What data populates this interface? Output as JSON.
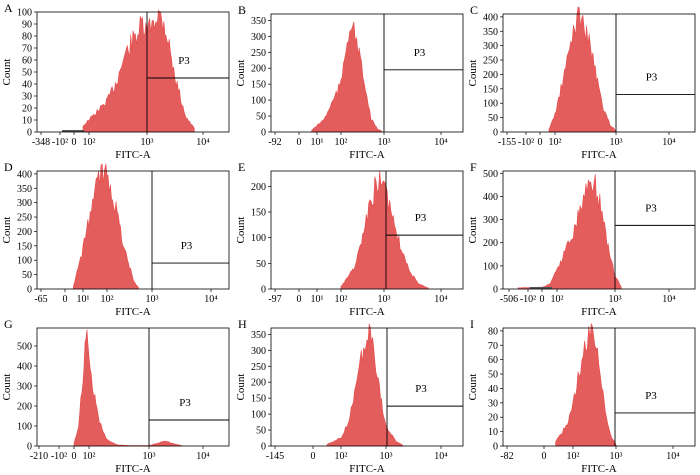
{
  "figure": {
    "xlabel": "FITC-A",
    "ylabel": "Count",
    "gate_label": "P3",
    "panels": [
      {
        "letter": "A",
        "xticks": [
          "-348",
          "-10²",
          "0",
          "10²",
          "10³",
          "10⁴"
        ],
        "ytick_values": [
          0,
          10,
          20,
          30,
          40,
          50,
          60,
          70,
          80,
          90,
          100
        ],
        "ytick_labels": [
          "0",
          "10",
          "20",
          "30",
          "40",
          "50",
          "60",
          "70",
          "80",
          "90",
          "100"
        ],
        "ymax": 100,
        "gate_level": 45
      },
      {
        "letter": "B",
        "xticks": [
          "-92",
          "0",
          "10¹",
          "10²",
          "10³",
          "10⁴"
        ],
        "ytick_values": [
          0,
          50,
          100,
          150,
          200,
          250,
          300,
          350
        ],
        "ytick_labels": [
          "0",
          "50",
          "100",
          "150",
          "200",
          "250",
          "300",
          "350"
        ],
        "ymax": 370,
        "gate_level": 195
      },
      {
        "letter": "C",
        "xticks": [
          "-155",
          "-10²",
          "0",
          "10²",
          "10³",
          "10⁴"
        ],
        "ytick_values": [
          0,
          50,
          100,
          150,
          200,
          250,
          300,
          350,
          400
        ],
        "ytick_labels": [
          "0",
          "50",
          "100",
          "150",
          "200",
          "250",
          "300",
          "350",
          "400"
        ],
        "ymax": 410,
        "gate_level": 130
      },
      {
        "letter": "D",
        "xticks": [
          "-65",
          "0",
          "10¹",
          "10²",
          "10³",
          "10⁴"
        ],
        "ytick_values": [
          0,
          50,
          100,
          150,
          200,
          250,
          300,
          350,
          400
        ],
        "ytick_labels": [
          "0",
          "50",
          "100",
          "150",
          "200",
          "250",
          "300",
          "350",
          "400"
        ],
        "ymax": 410,
        "gate_level": 90
      },
      {
        "letter": "E",
        "xticks": [
          "-97",
          "0",
          "10¹",
          "10²",
          "10³",
          "10⁴"
        ],
        "ytick_values": [
          0,
          50,
          100,
          150,
          200
        ],
        "ytick_labels": [
          "0",
          "50",
          "100",
          "150",
          "200"
        ],
        "ymax": 230,
        "gate_level": 105
      },
      {
        "letter": "F",
        "xticks": [
          "-506",
          "-10²",
          "0",
          "10²",
          "10³",
          "10⁴"
        ],
        "ytick_values": [
          0,
          100,
          200,
          300,
          400,
          500
        ],
        "ytick_labels": [
          "0",
          "100",
          "200",
          "300",
          "400",
          "500"
        ],
        "ymax": 510,
        "gate_level": 275
      },
      {
        "letter": "G",
        "xticks": [
          "-210",
          "-10²",
          "0",
          "10²",
          "10³",
          "10⁴"
        ],
        "ytick_values": [
          0,
          100,
          200,
          300,
          400,
          500
        ],
        "ytick_labels": [
          "0",
          "100",
          "200",
          "300",
          "400",
          "500"
        ],
        "ymax": 590,
        "gate_level": 130
      },
      {
        "letter": "H",
        "xticks": [
          "-145",
          "0",
          "10²",
          "10³",
          "10⁴"
        ],
        "ytick_values": [
          0,
          50,
          100,
          150,
          200,
          250,
          300,
          350
        ],
        "ytick_labels": [
          "0",
          "50",
          "100",
          "150",
          "200",
          "250",
          "300",
          "350"
        ],
        "ymax": 370,
        "gate_level": 125
      },
      {
        "letter": "I",
        "xticks": [
          "-82",
          "0",
          "10²",
          "10³",
          "10⁴"
        ],
        "ytick_values": [
          0,
          10,
          20,
          30,
          40,
          50,
          60,
          70,
          80
        ],
        "ytick_labels": [
          "0",
          "10",
          "20",
          "30",
          "40",
          "50",
          "60",
          "70",
          "80"
        ],
        "ymax": 82,
        "gate_level": 23
      }
    ]
  },
  "colors": {
    "fill": "#e35d5d",
    "fill_edge": "#e84b4b",
    "axis": "#000000",
    "gate": "#000000"
  },
  "chart_data": [
    {
      "type": "area",
      "title": "A",
      "xlabel": "FITC-A",
      "ylabel": "Count",
      "x_scale": "biexponential",
      "ylim": [
        0,
        100
      ],
      "gate": "P3",
      "gate_count_level": 45,
      "series": [
        {
          "x": [
            60,
            100,
            200,
            300,
            400,
            600,
            800,
            1000,
            1300,
            1600,
            2000,
            2500,
            3000,
            4000,
            5000,
            7000
          ],
          "y": [
            5,
            10,
            25,
            42,
            62,
            78,
            88,
            82,
            94,
            98,
            92,
            72,
            50,
            28,
            12,
            3
          ]
        }
      ]
    },
    {
      "type": "area",
      "title": "B",
      "xlabel": "FITC-A",
      "ylabel": "Count",
      "x_scale": "biexponential",
      "ylim": [
        0,
        370
      ],
      "gate": "P3",
      "gate_count_level": 195,
      "series": [
        {
          "x": [
            30,
            60,
            100,
            130,
            160,
            200,
            250,
            300,
            400,
            500,
            700,
            900
          ],
          "y": [
            5,
            40,
            150,
            270,
            340,
            310,
            270,
            200,
            110,
            40,
            10,
            2
          ]
        }
      ]
    },
    {
      "type": "area",
      "title": "C",
      "xlabel": "FITC-A",
      "ylabel": "Count",
      "x_scale": "biexponential",
      "ylim": [
        0,
        410
      ],
      "gate": "P3",
      "gate_count_level": 130,
      "series": [
        {
          "x": [
            60,
            100,
            150,
            200,
            250,
            300,
            400,
            500,
            600,
            800,
            1000
          ],
          "y": [
            10,
            60,
            220,
            350,
            410,
            370,
            280,
            170,
            90,
            25,
            5
          ]
        }
      ]
    },
    {
      "type": "area",
      "title": "D",
      "xlabel": "FITC-A",
      "ylabel": "Count",
      "x_scale": "biexponential",
      "ylim": [
        0,
        410
      ],
      "gate": "P3",
      "gate_count_level": 90,
      "series": [
        {
          "x": [
            20,
            40,
            60,
            80,
            100,
            150,
            200,
            300,
            400,
            500
          ],
          "y": [
            10,
            120,
            260,
            390,
            410,
            300,
            200,
            90,
            25,
            5
          ]
        }
      ]
    },
    {
      "type": "area",
      "title": "E",
      "xlabel": "FITC-A",
      "ylabel": "Count",
      "x_scale": "biexponential",
      "ylim": [
        0,
        230
      ],
      "gate": "P3",
      "gate_count_level": 105,
      "series": [
        {
          "x": [
            100,
            200,
            300,
            500,
            700,
            900,
            1200,
            1600,
            2000,
            3000,
            4000,
            6000
          ],
          "y": [
            5,
            40,
            90,
            170,
            215,
            200,
            170,
            120,
            80,
            30,
            10,
            2
          ]
        }
      ]
    },
    {
      "type": "area",
      "title": "F",
      "xlabel": "FITC-A",
      "ylabel": "Count",
      "x_scale": "biexponential",
      "ylim": [
        0,
        510
      ],
      "gate": "P3",
      "gate_count_level": 275,
      "series": [
        {
          "x": [
            -80,
            0,
            50,
            100,
            200,
            300,
            400,
            500,
            600,
            800,
            1000,
            1300
          ],
          "y": [
            5,
            8,
            20,
            80,
            260,
            420,
            480,
            420,
            320,
            150,
            60,
            10
          ]
        }
      ]
    },
    {
      "type": "area",
      "title": "G",
      "xlabel": "FITC-A",
      "ylabel": "Count",
      "x_scale": "biexponential",
      "ylim": [
        0,
        590
      ],
      "gate": "P3",
      "gate_count_level": 130,
      "series": [
        {
          "x": [
            0,
            30,
            60,
            80,
            100,
            150,
            200,
            300,
            500,
            1000,
            1500,
            2000,
            3000,
            4000
          ],
          "y": [
            10,
            100,
            350,
            590,
            400,
            120,
            30,
            5,
            2,
            2,
            15,
            25,
            10,
            2
          ]
        }
      ]
    },
    {
      "type": "area",
      "title": "H",
      "xlabel": "FITC-A",
      "ylabel": "Count",
      "x_scale": "biexponential",
      "ylim": [
        0,
        370
      ],
      "gate": "P3",
      "gate_count_level": 125,
      "series": [
        {
          "x": [
            50,
            100,
            150,
            200,
            300,
            400,
            500,
            600,
            800,
            1000,
            1500,
            2000
          ],
          "y": [
            5,
            25,
            80,
            160,
            290,
            355,
            330,
            260,
            140,
            60,
            15,
            3
          ]
        }
      ]
    },
    {
      "type": "area",
      "title": "I",
      "xlabel": "FITC-A",
      "ylabel": "Count",
      "x_scale": "biexponential",
      "ylim": [
        0,
        82
      ],
      "gate": "P3",
      "gate_count_level": 23,
      "series": [
        {
          "x": [
            40,
            80,
            100,
            150,
            200,
            250,
            300,
            400,
            500,
            600,
            800,
            1000
          ],
          "y": [
            3,
            15,
            30,
            55,
            72,
            78,
            74,
            60,
            35,
            18,
            6,
            1
          ]
        }
      ]
    }
  ]
}
